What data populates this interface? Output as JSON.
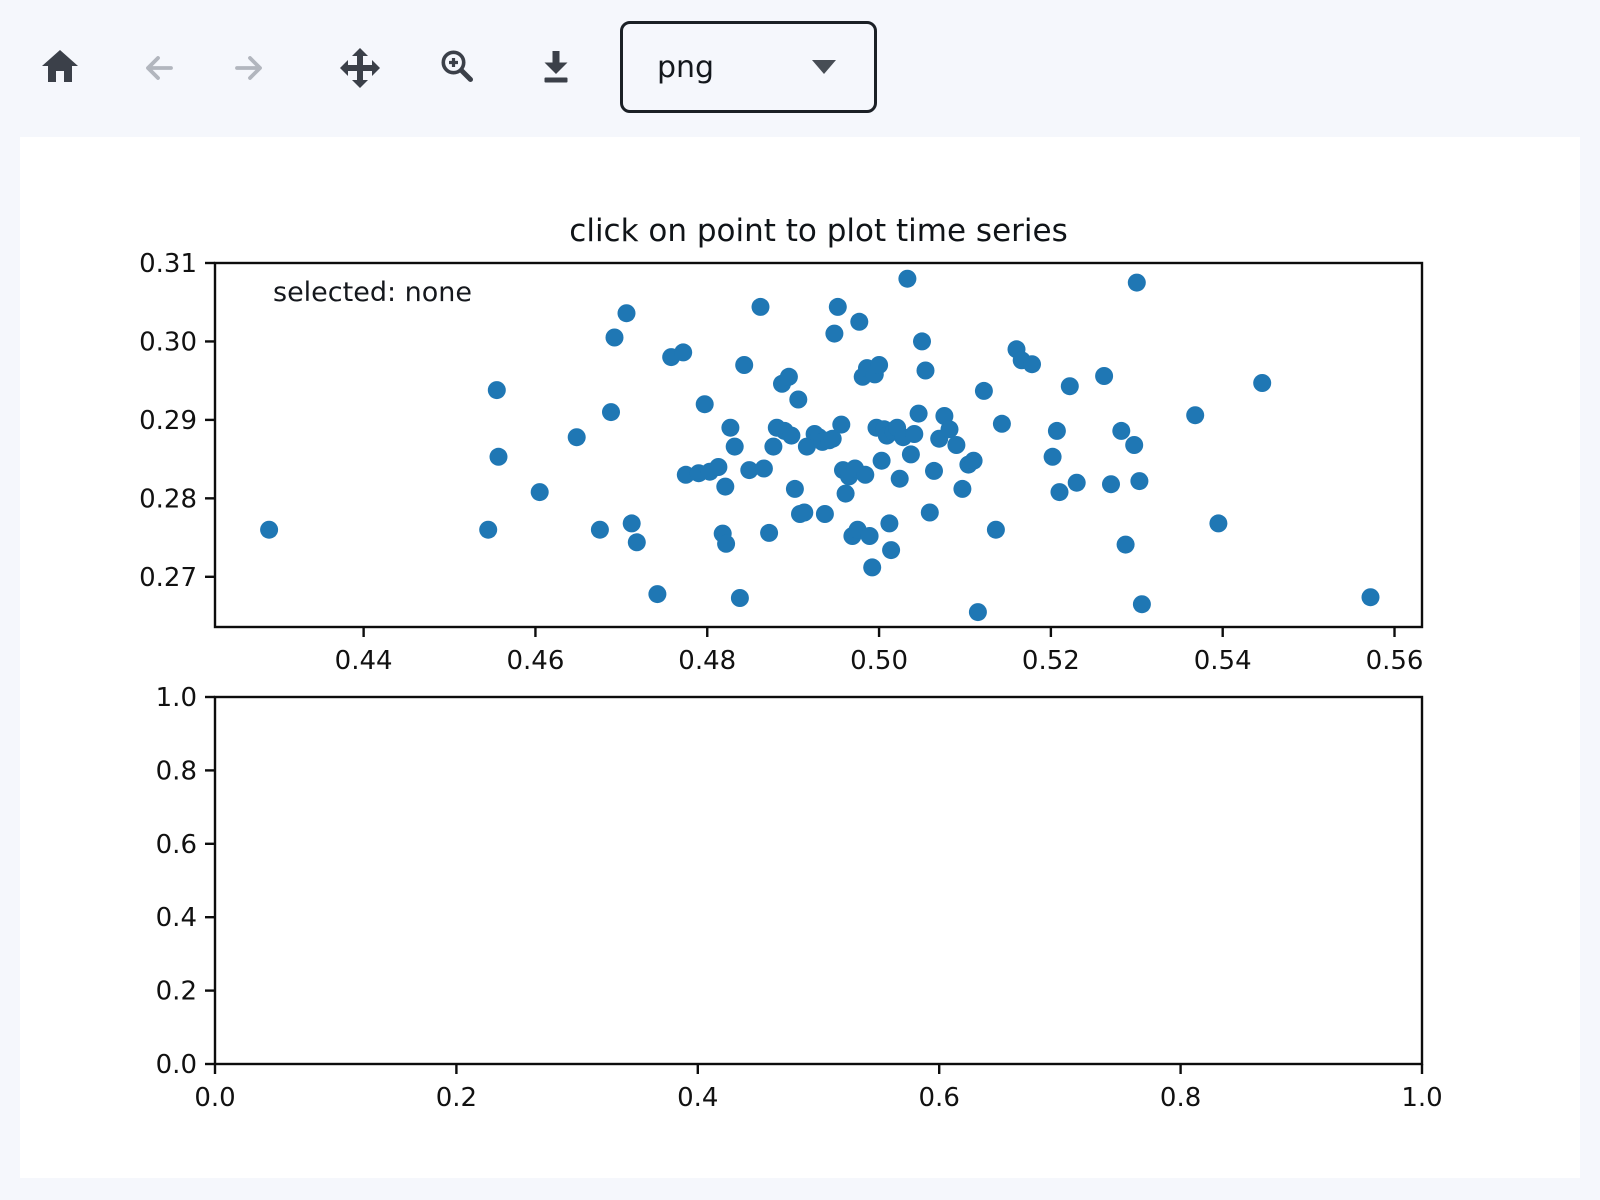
{
  "toolbar": {
    "format_select": {
      "value": "png"
    },
    "buttons": {
      "home": {
        "enabled": true
      },
      "back": {
        "enabled": false
      },
      "forward": {
        "enabled": false
      },
      "pan": {
        "enabled": true
      },
      "zoom_rect": {
        "enabled": true
      },
      "download": {
        "enabled": true
      }
    }
  },
  "colors": {
    "page_bg": "#f5f7fc",
    "canvas_bg": "#ffffff",
    "marker": "#1f77b4",
    "axis": "#0d0d0d",
    "toolbar_icon": "#3b4049",
    "toolbar_icon_disabled": "#b2b6be"
  },
  "chart_data": [
    {
      "type": "scatter",
      "title": "click on point to plot time series",
      "annotation": "selected: none",
      "xlim": [
        0.4227,
        0.5632
      ],
      "ylim": [
        0.2636,
        0.31
      ],
      "xticks": [
        0.44,
        0.46,
        0.48,
        0.5,
        0.52,
        0.54,
        0.56
      ],
      "xtick_labels": [
        "0.44",
        "0.46",
        "0.48",
        "0.50",
        "0.52",
        "0.54",
        "0.56"
      ],
      "yticks": [
        0.31,
        0.3,
        0.29,
        0.28,
        0.27
      ],
      "ytick_labels": [
        "0.31",
        "0.30",
        "0.29",
        "0.28",
        "0.27"
      ],
      "marker_color": "#1f77b4",
      "marker_radius_px": 9,
      "x": [
        0.429,
        0.4545,
        0.4555,
        0.4557,
        0.4605,
        0.4648,
        0.4675,
        0.4688,
        0.4692,
        0.4706,
        0.4712,
        0.4718,
        0.4742,
        0.4758,
        0.4772,
        0.4775,
        0.479,
        0.4797,
        0.4803,
        0.4813,
        0.4818,
        0.4821,
        0.4822,
        0.4827,
        0.4832,
        0.4838,
        0.4843,
        0.4849,
        0.4862,
        0.4866,
        0.4872,
        0.4877,
        0.4881,
        0.4887,
        0.489,
        0.4895,
        0.4898,
        0.4902,
        0.4906,
        0.4908,
        0.4913,
        0.4916,
        0.4925,
        0.493,
        0.4934,
        0.4937,
        0.4942,
        0.4946,
        0.4948,
        0.4952,
        0.4956,
        0.4958,
        0.4961,
        0.4965,
        0.4969,
        0.4972,
        0.4975,
        0.4977,
        0.4981,
        0.4984,
        0.4986,
        0.4989,
        0.4992,
        0.4995,
        0.4997,
        0.5,
        0.5003,
        0.5006,
        0.5009,
        0.5012,
        0.5014,
        0.5017,
        0.5021,
        0.5024,
        0.5028,
        0.5033,
        0.5037,
        0.5041,
        0.5046,
        0.505,
        0.5054,
        0.5059,
        0.5064,
        0.507,
        0.5076,
        0.5082,
        0.509,
        0.5097,
        0.5104,
        0.511,
        0.5115,
        0.5122,
        0.5136,
        0.5143,
        0.516,
        0.5166,
        0.5178,
        0.5202,
        0.5207,
        0.521,
        0.5222,
        0.523,
        0.5262,
        0.527,
        0.5282,
        0.5287,
        0.5297,
        0.53,
        0.5303,
        0.5306,
        0.5368,
        0.5395,
        0.5446,
        0.5572
      ],
      "y": [
        0.276,
        0.276,
        0.2938,
        0.2853,
        0.2808,
        0.2878,
        0.276,
        0.291,
        0.3005,
        0.3036,
        0.2768,
        0.2744,
        0.2678,
        0.298,
        0.2986,
        0.283,
        0.2832,
        0.292,
        0.2834,
        0.284,
        0.2755,
        0.2815,
        0.2742,
        0.289,
        0.2866,
        0.2673,
        0.297,
        0.2836,
        0.3044,
        0.2838,
        0.2756,
        0.2866,
        0.289,
        0.2946,
        0.2886,
        0.2955,
        0.288,
        0.2812,
        0.2926,
        0.278,
        0.2782,
        0.2866,
        0.2882,
        0.2878,
        0.2872,
        0.278,
        0.2874,
        0.2876,
        0.301,
        0.3044,
        0.2894,
        0.2836,
        0.2806,
        0.2828,
        0.2752,
        0.2838,
        0.276,
        0.3025,
        0.2955,
        0.283,
        0.2966,
        0.2752,
        0.2712,
        0.2958,
        0.289,
        0.297,
        0.2848,
        0.2888,
        0.288,
        0.2768,
        0.2734,
        0.2885,
        0.289,
        0.2825,
        0.2878,
        0.308,
        0.2856,
        0.2882,
        0.2908,
        0.3,
        0.2963,
        0.2782,
        0.2835,
        0.2876,
        0.2905,
        0.2888,
        0.2868,
        0.2812,
        0.2843,
        0.2848,
        0.2655,
        0.2937,
        0.276,
        0.2895,
        0.299,
        0.2976,
        0.2971,
        0.2853,
        0.2886,
        0.2808,
        0.2943,
        0.282,
        0.2956,
        0.2818,
        0.2886,
        0.2741,
        0.2868,
        0.3075,
        0.2822,
        0.2665,
        0.2906,
        0.2768,
        0.2947,
        0.2674
      ]
    },
    {
      "type": "scatter",
      "title": "",
      "xlim": [
        0.0,
        1.0
      ],
      "ylim": [
        0.0,
        1.0
      ],
      "xticks": [
        0.0,
        0.2,
        0.4,
        0.6,
        0.8,
        1.0
      ],
      "xtick_labels": [
        "0.0",
        "0.2",
        "0.4",
        "0.6",
        "0.8",
        "1.0"
      ],
      "yticks": [
        1.0,
        0.8,
        0.6,
        0.4,
        0.2,
        0.0
      ],
      "ytick_labels": [
        "1.0",
        "0.8",
        "0.6",
        "0.4",
        "0.2",
        "0.0"
      ],
      "marker_color": "#1f77b4",
      "marker_radius_px": 9,
      "x": [],
      "y": []
    }
  ]
}
